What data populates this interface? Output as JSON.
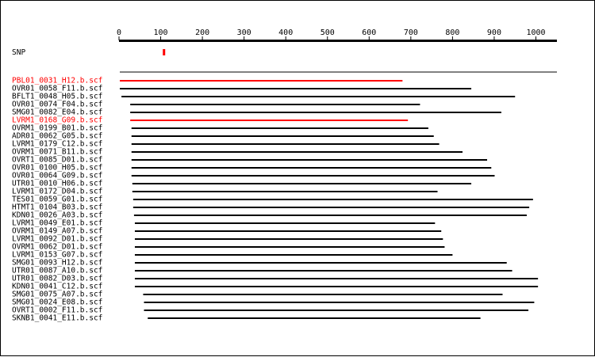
{
  "axis": {
    "ticks": [
      0,
      100,
      200,
      300,
      400,
      500,
      600,
      700,
      800,
      900,
      1000
    ],
    "min": 0,
    "max": 1000
  },
  "snp": {
    "label": "SNP",
    "position": 107,
    "color": "#ff0000"
  },
  "reads": [
    {
      "name": "PBL01_0031_H12.b.scf",
      "start": 2,
      "end": 680,
      "highlight": true
    },
    {
      "name": "OVR01_0058_F11.b.scf",
      "start": 2,
      "end": 845,
      "highlight": false
    },
    {
      "name": "BFLT1_0048_H05.b.scf",
      "start": 6,
      "end": 950,
      "highlight": false
    },
    {
      "name": "OVR01_0074_F04.b.scf",
      "start": 27,
      "end": 722,
      "highlight": false
    },
    {
      "name": "SMG01_0082_E04.b.scf",
      "start": 27,
      "end": 917,
      "highlight": false
    },
    {
      "name": "LVRM1_0168_G09.b.scf",
      "start": 27,
      "end": 693,
      "highlight": true
    },
    {
      "name": "OVRM1_0199_B01.b.scf",
      "start": 30,
      "end": 742,
      "highlight": false
    },
    {
      "name": "ADR01_0062_G05.b.scf",
      "start": 30,
      "end": 755,
      "highlight": false
    },
    {
      "name": "LVRM1_0179_C12.b.scf",
      "start": 30,
      "end": 768,
      "highlight": false
    },
    {
      "name": "OVRM1_0071_B11.b.scf",
      "start": 30,
      "end": 824,
      "highlight": false
    },
    {
      "name": "OVRT1_0085_D01.b.scf",
      "start": 30,
      "end": 883,
      "highlight": false
    },
    {
      "name": "OVR01_0100_H05.b.scf",
      "start": 30,
      "end": 893,
      "highlight": false
    },
    {
      "name": "OVR01_0064_G09.b.scf",
      "start": 30,
      "end": 901,
      "highlight": false
    },
    {
      "name": "UTR01_0010_H06.b.scf",
      "start": 32,
      "end": 845,
      "highlight": false
    },
    {
      "name": "LVRM1_0172_D04.b.scf",
      "start": 32,
      "end": 764,
      "highlight": false
    },
    {
      "name": "TES01_0059_G01.b.scf",
      "start": 34,
      "end": 993,
      "highlight": false
    },
    {
      "name": "HTMT1_0104_B03.b.scf",
      "start": 34,
      "end": 984,
      "highlight": false
    },
    {
      "name": "KDN01_0026_A03.b.scf",
      "start": 36,
      "end": 978,
      "highlight": false
    },
    {
      "name": "LVRM1_0049_E01.b.scf",
      "start": 38,
      "end": 758,
      "highlight": false
    },
    {
      "name": "OVRM1_0149_A07.b.scf",
      "start": 38,
      "end": 773,
      "highlight": false
    },
    {
      "name": "LVRM1_0092_D01.b.scf",
      "start": 38,
      "end": 777,
      "highlight": false
    },
    {
      "name": "OVRM1_0062_D01.b.scf",
      "start": 38,
      "end": 781,
      "highlight": false
    },
    {
      "name": "LVRM1_0153_G07.b.scf",
      "start": 38,
      "end": 800,
      "highlight": false
    },
    {
      "name": "SMG01_0093_H12.b.scf",
      "start": 38,
      "end": 930,
      "highlight": false
    },
    {
      "name": "UTR01_0087_A10.b.scf",
      "start": 38,
      "end": 943,
      "highlight": false
    },
    {
      "name": "UTR01_0082_D03.b.scf",
      "start": 38,
      "end": 1005,
      "highlight": false
    },
    {
      "name": "KDN01_0041_C12.b.scf",
      "start": 38,
      "end": 1005,
      "highlight": false
    },
    {
      "name": "SMG01_0075_A07.b.scf",
      "start": 58,
      "end": 920,
      "highlight": false
    },
    {
      "name": "SMG01_0024_E08.b.scf",
      "start": 60,
      "end": 996,
      "highlight": false
    },
    {
      "name": "OVRT1_0002_F11.b.scf",
      "start": 60,
      "end": 982,
      "highlight": false
    },
    {
      "name": "SKNB1_0041_E11.b.scf",
      "start": 69,
      "end": 867,
      "highlight": false
    }
  ]
}
